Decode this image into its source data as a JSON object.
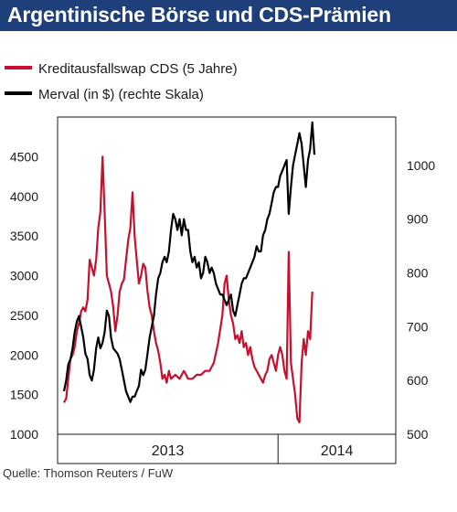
{
  "header": {
    "title": "Argentinische Börse und CDS-Prämien"
  },
  "footer": {
    "source": "Quelle: Thomson Reuters / FuW"
  },
  "colors": {
    "title_background": "#1f3f7a",
    "cds_line": "#c8102e",
    "merval_line": "#000000"
  },
  "chart_data": {
    "type": "line",
    "title": "Argentinische Börse und CDS-Prämien",
    "legend_placement": "top-left",
    "grid": false,
    "x_categories": [
      "2013",
      "2014"
    ],
    "x_range": [
      2012.97,
      2014.55
    ],
    "x_divider": 2014.0,
    "y_left": {
      "ticks": [
        1000,
        1500,
        2000,
        2500,
        3000,
        3500,
        4000,
        4500
      ],
      "range": [
        1000,
        5000
      ]
    },
    "y_right": {
      "ticks": [
        500,
        600,
        700,
        800,
        900,
        1000
      ],
      "range": [
        500,
        1090
      ]
    },
    "series": [
      {
        "name": "Kreditausfallswap CDS (5 Jahre)",
        "axis": "left",
        "color": "#c8102e",
        "points": [
          [
            2013.0,
            1400
          ],
          [
            2013.01,
            1450
          ],
          [
            2013.02,
            1700
          ],
          [
            2013.03,
            1950
          ],
          [
            2013.04,
            2000
          ],
          [
            2013.05,
            2100
          ],
          [
            2013.06,
            2300
          ],
          [
            2013.07,
            2400
          ],
          [
            2013.08,
            2550
          ],
          [
            2013.09,
            2600
          ],
          [
            2013.1,
            2550
          ],
          [
            2013.11,
            2700
          ],
          [
            2013.12,
            3200
          ],
          [
            2013.13,
            3100
          ],
          [
            2013.14,
            3000
          ],
          [
            2013.15,
            3200
          ],
          [
            2013.16,
            3600
          ],
          [
            2013.17,
            3800
          ],
          [
            2013.18,
            4500
          ],
          [
            2013.19,
            3800
          ],
          [
            2013.2,
            3000
          ],
          [
            2013.21,
            2900
          ],
          [
            2013.22,
            2800
          ],
          [
            2013.23,
            2600
          ],
          [
            2013.24,
            2300
          ],
          [
            2013.25,
            2500
          ],
          [
            2013.26,
            2800
          ],
          [
            2013.27,
            2900
          ],
          [
            2013.28,
            2950
          ],
          [
            2013.29,
            3200
          ],
          [
            2013.3,
            3450
          ],
          [
            2013.31,
            3600
          ],
          [
            2013.32,
            4050
          ],
          [
            2013.33,
            3500
          ],
          [
            2013.34,
            3200
          ],
          [
            2013.35,
            2900
          ],
          [
            2013.36,
            3000
          ],
          [
            2013.37,
            3150
          ],
          [
            2013.38,
            3100
          ],
          [
            2013.39,
            2800
          ],
          [
            2013.4,
            2600
          ],
          [
            2013.41,
            2500
          ],
          [
            2013.42,
            2300
          ],
          [
            2013.43,
            2150
          ],
          [
            2013.44,
            2050
          ],
          [
            2013.45,
            1900
          ],
          [
            2013.46,
            1700
          ],
          [
            2013.47,
            1750
          ],
          [
            2013.48,
            1650
          ],
          [
            2013.49,
            1800
          ],
          [
            2013.5,
            1700
          ],
          [
            2013.52,
            1750
          ],
          [
            2013.54,
            1700
          ],
          [
            2013.56,
            1800
          ],
          [
            2013.58,
            1700
          ],
          [
            2013.6,
            1700
          ],
          [
            2013.62,
            1750
          ],
          [
            2013.64,
            1750
          ],
          [
            2013.66,
            1800
          ],
          [
            2013.68,
            1800
          ],
          [
            2013.7,
            1900
          ],
          [
            2013.72,
            2150
          ],
          [
            2013.74,
            2500
          ],
          [
            2013.75,
            2900
          ],
          [
            2013.76,
            3000
          ],
          [
            2013.77,
            2700
          ],
          [
            2013.78,
            2500
          ],
          [
            2013.79,
            2400
          ],
          [
            2013.8,
            2200
          ],
          [
            2013.81,
            2250
          ],
          [
            2013.82,
            2150
          ],
          [
            2013.83,
            2300
          ],
          [
            2013.84,
            2100
          ],
          [
            2013.85,
            2150
          ],
          [
            2013.86,
            2000
          ],
          [
            2013.87,
            2100
          ],
          [
            2013.88,
            1950
          ],
          [
            2013.89,
            1850
          ],
          [
            2013.9,
            1800
          ],
          [
            2013.91,
            1750
          ],
          [
            2013.92,
            1700
          ],
          [
            2013.93,
            1650
          ],
          [
            2013.94,
            1750
          ],
          [
            2013.95,
            1800
          ],
          [
            2013.96,
            1950
          ],
          [
            2013.97,
            2000
          ],
          [
            2013.98,
            1900
          ],
          [
            2013.99,
            1800
          ],
          [
            2014.0,
            2000
          ],
          [
            2014.01,
            2100
          ],
          [
            2014.02,
            2000
          ],
          [
            2014.03,
            1800
          ],
          [
            2014.04,
            1700
          ],
          [
            2014.05,
            3300
          ],
          [
            2014.06,
            1900
          ],
          [
            2014.07,
            1700
          ],
          [
            2014.08,
            1500
          ],
          [
            2014.09,
            1200
          ],
          [
            2014.1,
            1150
          ],
          [
            2014.11,
            1900
          ],
          [
            2014.12,
            2200
          ],
          [
            2014.13,
            2000
          ],
          [
            2014.14,
            2300
          ],
          [
            2014.15,
            2200
          ],
          [
            2014.16,
            2800
          ]
        ]
      },
      {
        "name": "Merval (in $) (rechte Skala)",
        "axis": "right",
        "color": "#000000",
        "points": [
          [
            2013.0,
            580
          ],
          [
            2013.01,
            600
          ],
          [
            2013.02,
            630
          ],
          [
            2013.03,
            640
          ],
          [
            2013.04,
            660
          ],
          [
            2013.05,
            690
          ],
          [
            2013.06,
            710
          ],
          [
            2013.07,
            720
          ],
          [
            2013.08,
            700
          ],
          [
            2013.09,
            680
          ],
          [
            2013.1,
            650
          ],
          [
            2013.11,
            640
          ],
          [
            2013.12,
            610
          ],
          [
            2013.13,
            600
          ],
          [
            2013.14,
            620
          ],
          [
            2013.15,
            660
          ],
          [
            2013.16,
            680
          ],
          [
            2013.17,
            660
          ],
          [
            2013.18,
            670
          ],
          [
            2013.19,
            690
          ],
          [
            2013.2,
            730
          ],
          [
            2013.21,
            720
          ],
          [
            2013.22,
            680
          ],
          [
            2013.23,
            660
          ],
          [
            2013.24,
            655
          ],
          [
            2013.25,
            650
          ],
          [
            2013.26,
            640
          ],
          [
            2013.27,
            620
          ],
          [
            2013.28,
            600
          ],
          [
            2013.29,
            580
          ],
          [
            2013.3,
            570
          ],
          [
            2013.31,
            560
          ],
          [
            2013.32,
            570
          ],
          [
            2013.33,
            570
          ],
          [
            2013.34,
            580
          ],
          [
            2013.35,
            590
          ],
          [
            2013.36,
            620
          ],
          [
            2013.37,
            610
          ],
          [
            2013.38,
            620
          ],
          [
            2013.39,
            650
          ],
          [
            2013.4,
            680
          ],
          [
            2013.41,
            700
          ],
          [
            2013.42,
            720
          ],
          [
            2013.43,
            760
          ],
          [
            2013.44,
            790
          ],
          [
            2013.45,
            800
          ],
          [
            2013.46,
            820
          ],
          [
            2013.47,
            830
          ],
          [
            2013.48,
            820
          ],
          [
            2013.49,
            840
          ],
          [
            2013.5,
            880
          ],
          [
            2013.51,
            910
          ],
          [
            2013.52,
            900
          ],
          [
            2013.53,
            880
          ],
          [
            2013.54,
            900
          ],
          [
            2013.55,
            870
          ],
          [
            2013.56,
            900
          ],
          [
            2013.57,
            880
          ],
          [
            2013.58,
            880
          ],
          [
            2013.59,
            840
          ],
          [
            2013.6,
            820
          ],
          [
            2013.61,
            830
          ],
          [
            2013.62,
            810
          ],
          [
            2013.63,
            820
          ],
          [
            2013.64,
            790
          ],
          [
            2013.65,
            800
          ],
          [
            2013.66,
            830
          ],
          [
            2013.67,
            820
          ],
          [
            2013.68,
            800
          ],
          [
            2013.69,
            810
          ],
          [
            2013.7,
            800
          ],
          [
            2013.71,
            780
          ],
          [
            2013.72,
            770
          ],
          [
            2013.73,
            760
          ],
          [
            2013.74,
            760
          ],
          [
            2013.75,
            750
          ],
          [
            2013.76,
            740
          ],
          [
            2013.77,
            750
          ],
          [
            2013.78,
            760
          ],
          [
            2013.79,
            730
          ],
          [
            2013.8,
            720
          ],
          [
            2013.81,
            740
          ],
          [
            2013.82,
            760
          ],
          [
            2013.83,
            780
          ],
          [
            2013.84,
            790
          ],
          [
            2013.85,
            790
          ],
          [
            2013.86,
            800
          ],
          [
            2013.87,
            810
          ],
          [
            2013.88,
            820
          ],
          [
            2013.89,
            830
          ],
          [
            2013.9,
            850
          ],
          [
            2013.91,
            840
          ],
          [
            2013.92,
            840
          ],
          [
            2013.93,
            870
          ],
          [
            2013.94,
            880
          ],
          [
            2013.95,
            900
          ],
          [
            2013.96,
            910
          ],
          [
            2013.97,
            930
          ],
          [
            2013.98,
            950
          ],
          [
            2013.99,
            960
          ],
          [
            2014.0,
            960
          ],
          [
            2014.01,
            980
          ],
          [
            2014.02,
            990
          ],
          [
            2014.03,
            1000
          ],
          [
            2014.04,
            1010
          ],
          [
            2014.05,
            910
          ],
          [
            2014.06,
            960
          ],
          [
            2014.07,
            1000
          ],
          [
            2014.08,
            1020
          ],
          [
            2014.09,
            1040
          ],
          [
            2014.1,
            1060
          ],
          [
            2014.11,
            1040
          ],
          [
            2014.12,
            1000
          ],
          [
            2014.13,
            960
          ],
          [
            2014.14,
            1010
          ],
          [
            2014.15,
            1030
          ],
          [
            2014.16,
            1080
          ],
          [
            2014.17,
            1020
          ]
        ]
      }
    ]
  }
}
